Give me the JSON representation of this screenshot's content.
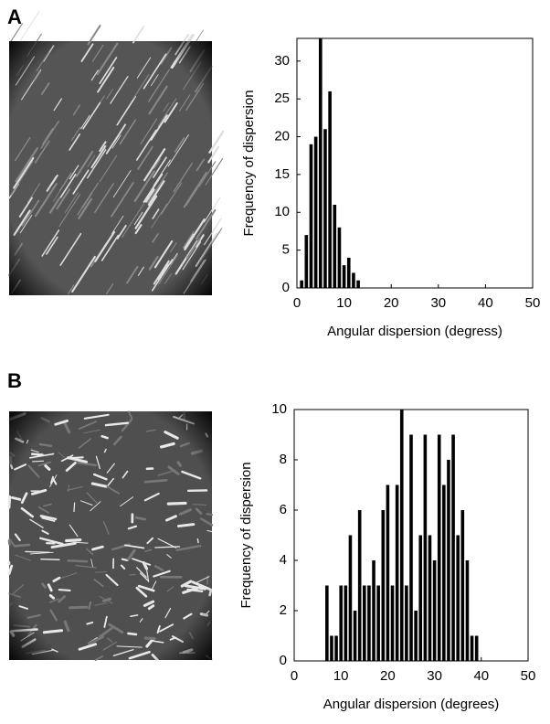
{
  "chart_data": [
    {
      "type": "bar",
      "label": "A",
      "xlabel": "Angular dispersion (degress)",
      "ylabel": "Frequency of dispersion",
      "x": [
        1,
        2,
        3,
        4,
        5,
        6,
        7,
        8,
        9,
        10,
        11,
        12,
        13
      ],
      "values": [
        1,
        7,
        19,
        20,
        33,
        21,
        26,
        11,
        8,
        3,
        4,
        2,
        1
      ],
      "color": "#000000",
      "xlim": [
        0,
        50
      ],
      "xticks": [
        0,
        10,
        20,
        30,
        40,
        50
      ],
      "ylim": [
        0,
        33
      ],
      "yticks": [
        0,
        5,
        10,
        15,
        20,
        25,
        30
      ]
    },
    {
      "type": "bar",
      "label": "B",
      "xlabel": "Angular dispersion (degrees)",
      "ylabel": "Frequency of dispersion",
      "x": [
        7,
        8,
        9,
        10,
        11,
        12,
        13,
        14,
        15,
        16,
        17,
        18,
        19,
        20,
        21,
        22,
        23,
        24,
        25,
        26,
        27,
        28,
        29,
        30,
        31,
        32,
        33,
        34,
        35,
        36,
        37,
        38,
        39
      ],
      "values": [
        3,
        1,
        1,
        3,
        3,
        5,
        2,
        6,
        3,
        3,
        4,
        3,
        6,
        7,
        3,
        7,
        10,
        3,
        9,
        2,
        5,
        9,
        5,
        4,
        9,
        7,
        8,
        9,
        5,
        6,
        4,
        1,
        1
      ],
      "color": "#000000",
      "xlim": [
        0,
        50
      ],
      "xticks": [
        0,
        10,
        20,
        30,
        40,
        50
      ],
      "ylim": [
        0,
        10
      ],
      "yticks": [
        0,
        2,
        4,
        6,
        8,
        10
      ]
    }
  ]
}
